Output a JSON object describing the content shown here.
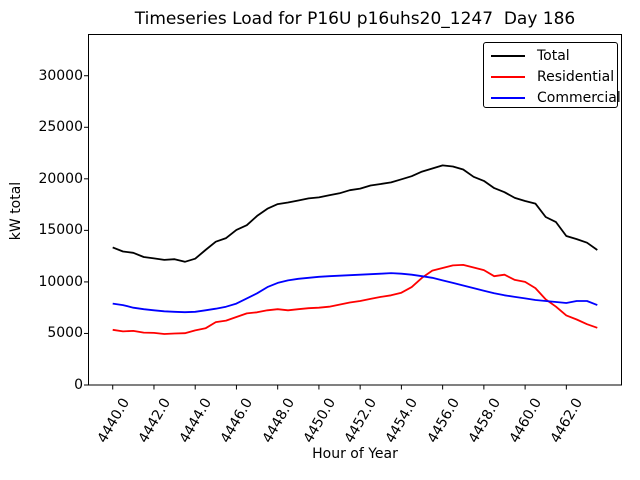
{
  "chart_data": {
    "type": "line",
    "title": "Timeseries Load for P16U p16uhs20_1247  Day 186",
    "xlabel": "Hour of Year",
    "ylabel": "kW total",
    "xlim": [
      4438.825,
      4464.675
    ],
    "ylim": [
      0,
      34000
    ],
    "grid": false,
    "legend_position": "upper right",
    "x_tick_rotation": 60,
    "x_tick_values": [
      4440,
      4442,
      4444,
      4446,
      4448,
      4450,
      4452,
      4454,
      4456,
      4458,
      4460,
      4462
    ],
    "x_tick_labels": [
      "4440.0",
      "4442.0",
      "4444.0",
      "4446.0",
      "4448.0",
      "4450.0",
      "4452.0",
      "4454.0",
      "4456.0",
      "4458.0",
      "4460.0",
      "4462.0"
    ],
    "y_tick_values": [
      0,
      5000,
      10000,
      15000,
      20000,
      25000,
      30000
    ],
    "y_tick_labels": [
      "0",
      "5000",
      "10000",
      "15000",
      "20000",
      "25000",
      "30000"
    ],
    "x": [
      4440,
      4440.5,
      4441,
      4441.5,
      4442,
      4442.5,
      4443,
      4443.5,
      4444,
      4444.5,
      4445,
      4445.5,
      4446,
      4446.5,
      4447,
      4447.5,
      4448,
      4448.5,
      4449,
      4449.5,
      4450,
      4450.5,
      4451,
      4451.5,
      4452,
      4452.5,
      4453,
      4453.5,
      4454,
      4454.5,
      4455,
      4455.5,
      4456,
      4456.5,
      4457,
      4457.5,
      4458,
      4458.5,
      4459,
      4459.5,
      4460,
      4460.5,
      4461,
      4461.5,
      4462,
      4462.5,
      4463,
      4463.5
    ],
    "series": [
      {
        "name": "Total",
        "color": "#000000",
        "values": [
          13350,
          12950,
          12820,
          12420,
          12280,
          12140,
          12200,
          11950,
          12250,
          13100,
          13900,
          14250,
          15050,
          15500,
          16400,
          17100,
          17550,
          17700,
          17900,
          18100,
          18200,
          18400,
          18600,
          18900,
          19050,
          19350,
          19500,
          19650,
          19950,
          20250,
          20700,
          21000,
          21300,
          21200,
          20900,
          20200,
          19800,
          19100,
          18700,
          18150,
          17850,
          17600,
          16300,
          15800,
          14450,
          14150,
          13800,
          13100
        ]
      },
      {
        "name": "Residential",
        "color": "#ff0000",
        "values": [
          5350,
          5200,
          5250,
          5080,
          5050,
          4950,
          5000,
          5020,
          5300,
          5500,
          6100,
          6250,
          6600,
          6950,
          7050,
          7250,
          7350,
          7250,
          7350,
          7450,
          7500,
          7600,
          7800,
          8000,
          8150,
          8350,
          8550,
          8700,
          8950,
          9500,
          10400,
          11100,
          11350,
          11600,
          11650,
          11400,
          11150,
          10550,
          10700,
          10200,
          10000,
          9400,
          8300,
          7600,
          6750,
          6350,
          5900,
          5550
        ]
      },
      {
        "name": "Commercial",
        "color": "#0000ff",
        "values": [
          7900,
          7750,
          7500,
          7350,
          7250,
          7150,
          7100,
          7060,
          7100,
          7250,
          7400,
          7600,
          7900,
          8400,
          8900,
          9500,
          9900,
          10150,
          10300,
          10400,
          10500,
          10550,
          10600,
          10650,
          10700,
          10750,
          10800,
          10850,
          10800,
          10700,
          10550,
          10400,
          10150,
          9900,
          9650,
          9400,
          9150,
          8900,
          8700,
          8550,
          8400,
          8250,
          8150,
          8050,
          7950,
          8150,
          8150,
          7750
        ]
      }
    ]
  }
}
